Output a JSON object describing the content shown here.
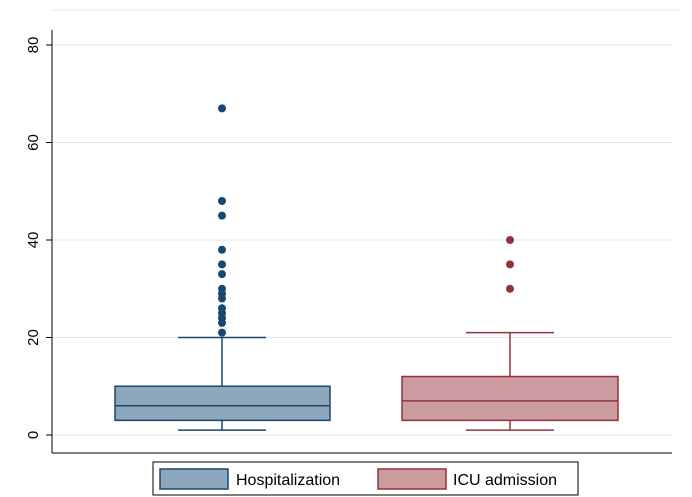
{
  "chart_data": {
    "type": "boxplot",
    "ylim": [
      0,
      80
    ],
    "yticks": [
      0,
      20,
      40,
      60,
      80
    ],
    "grid": true,
    "legend_position": "bottom",
    "series": [
      {
        "name": "Hospitalization",
        "fill": "#8ea7bd",
        "stroke": "#1a476f",
        "min": 1,
        "q1": 3,
        "median": 6,
        "q3": 10,
        "max": 20,
        "outliers": [
          21,
          23,
          24,
          25,
          26,
          28,
          29,
          30,
          33,
          35,
          38,
          45,
          48,
          67
        ]
      },
      {
        "name": "ICU admission",
        "fill": "#cc9ba0",
        "stroke": "#90353b",
        "min": 1,
        "q1": 3,
        "median": 7,
        "q3": 12,
        "max": 21,
        "outliers": [
          30,
          35,
          40
        ]
      }
    ]
  }
}
